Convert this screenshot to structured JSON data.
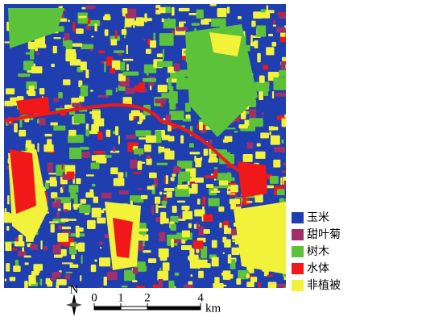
{
  "legend": {
    "items": [
      {
        "label": "玉米",
        "color": "#1f3fb0"
      },
      {
        "label": "甜叶菊",
        "color": "#a0306a"
      },
      {
        "label": "树木",
        "color": "#5cc23a"
      },
      {
        "label": "水体",
        "color": "#f01818"
      },
      {
        "label": "非植被",
        "color": "#f2f23a"
      }
    ]
  },
  "north_arrow": "N",
  "scale_bar": {
    "ticks": [
      0,
      1,
      2,
      4
    ],
    "unit": "km"
  }
}
